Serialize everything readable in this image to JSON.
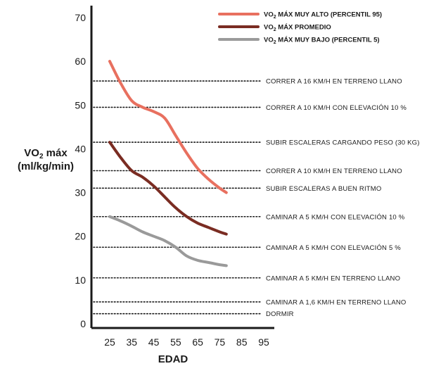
{
  "chart_data": {
    "type": "line",
    "title": "",
    "xlabel": "EDAD",
    "ylabel_parts": {
      "pre": "VO",
      "sub": "2",
      "post": " máx",
      "line2": "(ml/kg/min)"
    },
    "xlim": [
      20,
      97
    ],
    "ylim": [
      0,
      72
    ],
    "xticks": [
      25,
      35,
      45,
      55,
      65,
      75,
      85,
      95
    ],
    "yticks": [
      0,
      10,
      20,
      30,
      40,
      50,
      60,
      70
    ],
    "series": [
      {
        "name_parts": {
          "pre": "VO",
          "sub": "2",
          "post": " MÁX MUY ALTO (PERCENTIL 95)"
        },
        "color": "#e8705f",
        "x": [
          25,
          30,
          35,
          40,
          45,
          50,
          55,
          60,
          65,
          70,
          75,
          78
        ],
        "y": [
          60,
          55,
          51,
          49.5,
          48.5,
          47,
          43,
          39,
          35.5,
          33,
          31,
          30
        ]
      },
      {
        "name_parts": {
          "pre": "VO",
          "sub": "2",
          "post": " MÁX PROMEDIO"
        },
        "color": "#7a2c22",
        "x": [
          25,
          30,
          35,
          40,
          45,
          50,
          55,
          60,
          65,
          70,
          75,
          78
        ],
        "y": [
          41.5,
          38,
          35,
          33.5,
          31.5,
          29,
          26.5,
          24.5,
          23,
          22,
          21,
          20.5
        ]
      },
      {
        "name_parts": {
          "pre": "VO",
          "sub": "2",
          "post": " MÁX MUY BAJO (PERCENTIL 5)"
        },
        "color": "#9a9a9a",
        "x": [
          25,
          30,
          35,
          40,
          45,
          50,
          55,
          60,
          65,
          70,
          75,
          78
        ],
        "y": [
          24.5,
          23.5,
          22.3,
          21,
          20,
          19,
          17.5,
          15.5,
          14.5,
          14,
          13.5,
          13.3
        ]
      }
    ],
    "reference_lines": [
      {
        "y": 55.5,
        "label": "CORRER A 16 KM/H EN TERRENO LLANO"
      },
      {
        "y": 49.5,
        "label": "CORRER A 10 KM/H CON ELEVACIÓN 10 %"
      },
      {
        "y": 41.5,
        "label": "SUBIR ESCALERAS CARGANDO PESO (30 KG)"
      },
      {
        "y": 35,
        "label": "CORRER A 10 KM/H EN TERRENO LLANO"
      },
      {
        "y": 31,
        "label": "SUBIR ESCALERAS A BUEN RITMO"
      },
      {
        "y": 24.5,
        "label": "CAMINAR A 5 KM/H CON ELEVACIÓN 10 %"
      },
      {
        "y": 17.5,
        "label": "CAMINAR A 5 KM/H CON ELEVACIÓN 5 %"
      },
      {
        "y": 10.5,
        "label": "CAMINAR A 5 KM/H EN TERRENO LLANO"
      },
      {
        "y": 5,
        "label": "CAMINAR A 1,6 KM/H EN TERRENO LLANO"
      },
      {
        "y": 2.3,
        "label": "DORMIR"
      }
    ],
    "legend_position": "top-right",
    "grid": false
  }
}
